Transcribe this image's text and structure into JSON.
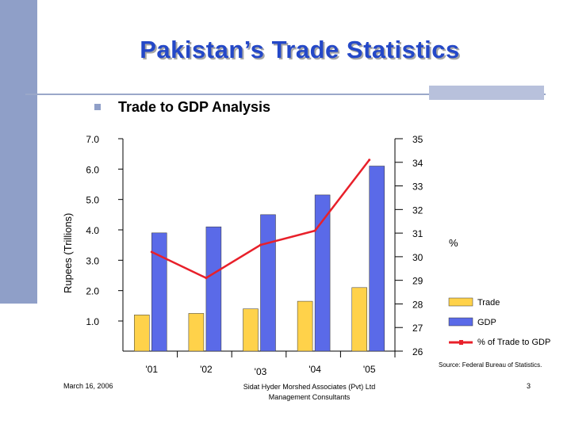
{
  "slide": {
    "title": "Pakistan’s Trade Statistics",
    "bullet": "Trade to GDP Analysis",
    "source": "Source: Federal Bureau of Statistics.",
    "footer_date": "March 16, 2006",
    "footer_company_line1": "Sidat Hyder Morshed Associates (Pvt) Ltd",
    "footer_company_line2": "Management Consultants",
    "page_number": "3"
  },
  "colors": {
    "title": "#2448c8",
    "trade": "#ffd24a",
    "gdp": "#5a6ae8",
    "ratio_line": "#e8202a",
    "sidebar": "#8f9fc8"
  },
  "chart_data": {
    "type": "bar",
    "categories": [
      "'01",
      "'02",
      "'03",
      "'04",
      "'05"
    ],
    "ylabel": "Rupees (Trillions)",
    "y2label": "%",
    "ylim": [
      1.0,
      7.0
    ],
    "y2lim": [
      26,
      35
    ],
    "y_ticks": [
      "7.0",
      "6.0",
      "5.0",
      "4.0",
      "3.0",
      "2.0",
      "1.0"
    ],
    "y2_ticks": [
      "35",
      "34",
      "33",
      "32",
      "31",
      "30",
      "29",
      "28",
      "27",
      "26"
    ],
    "series": [
      {
        "name": "Trade",
        "axis": "left",
        "kind": "bar",
        "values": [
          1.2,
          1.25,
          1.4,
          1.65,
          2.1
        ]
      },
      {
        "name": "GDP",
        "axis": "left",
        "kind": "bar",
        "values": [
          3.9,
          4.1,
          4.5,
          5.15,
          6.1
        ]
      },
      {
        "name": "% of Trade to GDP",
        "axis": "right",
        "kind": "line",
        "values": [
          30.2,
          29.1,
          30.5,
          31.1,
          34.1
        ]
      }
    ],
    "legend_position": "bottom-right",
    "grid": false
  }
}
